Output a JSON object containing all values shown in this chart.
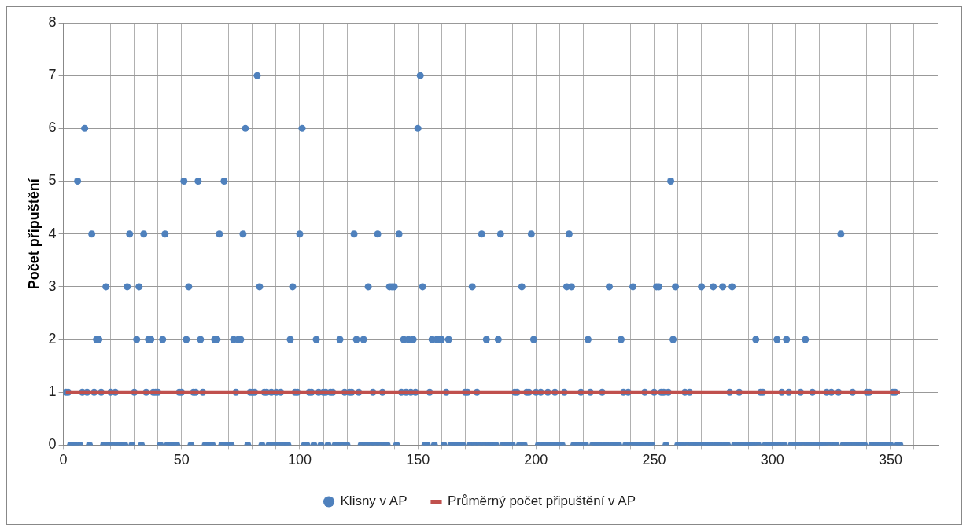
{
  "chart_data": {
    "type": "scatter",
    "ylabel": "Počet připuštění",
    "xlim": [
      0,
      370
    ],
    "ylim": [
      0,
      8
    ],
    "xticks": [
      0,
      {
        "value": 10,
        "label": null
      },
      {
        "value": 20,
        "label": null
      },
      {
        "value": 30,
        "label": null
      },
      {
        "value": 40,
        "label": null
      },
      50,
      {
        "value": 60,
        "label": null
      },
      {
        "value": 70,
        "label": null
      },
      {
        "value": 80,
        "label": null
      },
      {
        "value": 90,
        "label": null
      },
      100,
      {
        "value": 110,
        "label": null
      },
      {
        "value": 120,
        "label": null
      },
      {
        "value": 130,
        "label": null
      },
      {
        "value": 140,
        "label": null
      },
      150,
      {
        "value": 160,
        "label": null
      },
      {
        "value": 170,
        "label": null
      },
      {
        "value": 180,
        "label": null
      },
      {
        "value": 190,
        "label": null
      },
      200,
      {
        "value": 210,
        "label": null
      },
      {
        "value": 220,
        "label": null
      },
      {
        "value": 230,
        "label": null
      },
      {
        "value": 240,
        "label": null
      },
      250,
      {
        "value": 260,
        "label": null
      },
      {
        "value": 270,
        "label": null
      },
      {
        "value": 280,
        "label": null
      },
      {
        "value": 290,
        "label": null
      },
      300,
      {
        "value": 310,
        "label": null
      },
      {
        "value": 320,
        "label": null
      },
      {
        "value": 330,
        "label": null
      },
      {
        "value": 340,
        "label": null
      },
      350,
      {
        "value": 360,
        "label": null
      }
    ],
    "yticks": [
      0,
      1,
      2,
      3,
      4,
      5,
      6,
      7,
      8
    ],
    "grid": true,
    "legend": "bottom",
    "marker": "circle",
    "series": [
      {
        "name": "Klisny v AP",
        "type": "scatter",
        "color": "#4f81bd",
        "x": [
          1,
          2,
          3,
          4,
          5,
          6,
          7,
          8,
          9,
          10,
          11,
          12,
          13,
          14,
          15,
          16,
          17,
          18,
          19,
          20,
          21,
          22,
          23,
          24,
          25,
          26,
          27,
          28,
          29,
          30,
          31,
          32,
          33,
          34,
          35,
          36,
          37,
          38,
          39,
          40,
          41,
          42,
          43,
          44,
          45,
          46,
          47,
          48,
          49,
          50,
          51,
          52,
          53,
          54,
          55,
          56,
          57,
          58,
          59,
          60,
          61,
          62,
          63,
          64,
          65,
          66,
          67,
          68,
          69,
          70,
          71,
          72,
          73,
          74,
          75,
          76,
          77,
          78,
          79,
          80,
          81,
          82,
          83,
          84,
          85,
          86,
          87,
          88,
          89,
          90,
          91,
          92,
          93,
          94,
          95,
          96,
          97,
          98,
          99,
          100,
          101,
          102,
          103,
          104,
          105,
          106,
          107,
          108,
          109,
          110,
          111,
          112,
          113,
          114,
          115,
          116,
          117,
          118,
          119,
          120,
          121,
          122,
          123,
          124,
          125,
          126,
          127,
          128,
          129,
          130,
          131,
          132,
          133,
          134,
          135,
          136,
          137,
          138,
          139,
          140,
          141,
          142,
          143,
          144,
          145,
          146,
          147,
          148,
          149,
          150,
          151,
          152,
          153,
          154,
          155,
          156,
          157,
          158,
          159,
          160,
          161,
          162,
          163,
          164,
          165,
          166,
          167,
          168,
          169,
          170,
          171,
          172,
          173,
          174,
          175,
          176,
          177,
          178,
          179,
          180,
          181,
          182,
          183,
          184,
          185,
          186,
          187,
          188,
          189,
          190,
          191,
          192,
          193,
          194,
          195,
          196,
          197,
          198,
          199,
          200,
          201,
          202,
          203,
          204,
          205,
          206,
          207,
          208,
          209,
          210,
          211,
          212,
          213,
          214,
          215,
          216,
          217,
          218,
          219,
          220,
          221,
          222,
          223,
          224,
          225,
          226,
          227,
          228,
          229,
          230,
          231,
          232,
          233,
          234,
          235,
          236,
          237,
          238,
          239,
          240,
          241,
          242,
          243,
          244,
          245,
          246,
          247,
          248,
          249,
          250,
          251,
          252,
          253,
          254,
          255,
          256,
          257,
          258,
          259,
          260,
          261,
          262,
          263,
          264,
          265,
          266,
          267,
          268,
          269,
          270,
          271,
          272,
          273,
          274,
          275,
          276,
          277,
          278,
          279,
          280,
          281,
          282,
          283,
          284,
          285,
          286,
          287,
          288,
          289,
          290,
          291,
          292,
          293,
          294,
          295,
          296,
          297,
          298,
          299,
          300,
          301,
          302,
          303,
          304,
          305,
          306,
          307,
          308,
          309,
          310,
          311,
          312,
          313,
          314,
          315,
          316,
          317,
          318,
          319,
          320,
          321,
          322,
          323,
          324,
          325,
          326,
          327,
          328,
          329,
          330,
          331,
          332,
          333,
          334,
          335,
          336,
          337,
          338,
          339,
          340,
          341,
          342,
          343,
          344,
          345,
          346,
          347,
          348,
          349,
          350,
          351,
          352,
          353,
          354
        ],
        "values": [
          1,
          1,
          0,
          0,
          0,
          5,
          0,
          1,
          6,
          1,
          0,
          4,
          1,
          2,
          2,
          1,
          0,
          3,
          0,
          1,
          0,
          1,
          0,
          0,
          0,
          0,
          3,
          4,
          0,
          1,
          2,
          3,
          0,
          4,
          1,
          2,
          2,
          1,
          1,
          1,
          0,
          2,
          4,
          0,
          0,
          0,
          0,
          0,
          1,
          1,
          5,
          2,
          3,
          0,
          1,
          1,
          5,
          2,
          1,
          0,
          0,
          0,
          0,
          2,
          2,
          4,
          0,
          5,
          0,
          0,
          0,
          2,
          1,
          2,
          2,
          4,
          6,
          0,
          1,
          1,
          1,
          7,
          3,
          0,
          1,
          1,
          0,
          1,
          0,
          1,
          0,
          1,
          0,
          0,
          0,
          2,
          3,
          1,
          1,
          4,
          6,
          0,
          0,
          1,
          1,
          0,
          2,
          1,
          0,
          1,
          1,
          0,
          1,
          1,
          0,
          0,
          2,
          0,
          1,
          0,
          1,
          1,
          4,
          2,
          1,
          0,
          2,
          0,
          3,
          0,
          1,
          0,
          4,
          0,
          1,
          0,
          0,
          3,
          3,
          3,
          0,
          4,
          1,
          2,
          1,
          2,
          1,
          2,
          1,
          6,
          7,
          3,
          0,
          0,
          1,
          2,
          0,
          2,
          2,
          2,
          0,
          1,
          2,
          0,
          0,
          0,
          0,
          0,
          0,
          1,
          1,
          0,
          3,
          0,
          1,
          0,
          4,
          0,
          2,
          0,
          0,
          0,
          0,
          2,
          4,
          0,
          0,
          0,
          0,
          0,
          1,
          1,
          0,
          3,
          0,
          1,
          1,
          4,
          2,
          1,
          0,
          1,
          0,
          0,
          1,
          0,
          0,
          1,
          0,
          0,
          0,
          1,
          3,
          4,
          3,
          0,
          0,
          0,
          1,
          0,
          0,
          2,
          1,
          0,
          0,
          0,
          0,
          1,
          0,
          0,
          3,
          0,
          0,
          0,
          0,
          2,
          1,
          0,
          1,
          0,
          3,
          0,
          0,
          0,
          0,
          1,
          0,
          0,
          0,
          1,
          3,
          3,
          1,
          1,
          0,
          1,
          5,
          2,
          3,
          0,
          0,
          0,
          1,
          0,
          1,
          0,
          0,
          0,
          0,
          3,
          0,
          0,
          0,
          0,
          3,
          0,
          0,
          0,
          3,
          0,
          0,
          1,
          3,
          0,
          0,
          1,
          0,
          0,
          0,
          0,
          0,
          0,
          2,
          0,
          1,
          1,
          0,
          0,
          0,
          0,
          0,
          2,
          0,
          1,
          0,
          2,
          1,
          0,
          0,
          0,
          0,
          1,
          0,
          2,
          0,
          0,
          1,
          0,
          0,
          0,
          0,
          0,
          1,
          0,
          1,
          0,
          0,
          1,
          4,
          0,
          0,
          0,
          0,
          1,
          0,
          0,
          0,
          0,
          0,
          1,
          1,
          0,
          0,
          0,
          0,
          0,
          0,
          0,
          0,
          0,
          1,
          1,
          0,
          0
        ]
      },
      {
        "name": "Průměrný počet připuštění v AP",
        "type": "line",
        "color": "#c0504d",
        "marker": "none",
        "line_style": "solid",
        "x": [
          1,
          354
        ],
        "values": [
          1,
          1
        ]
      }
    ]
  }
}
